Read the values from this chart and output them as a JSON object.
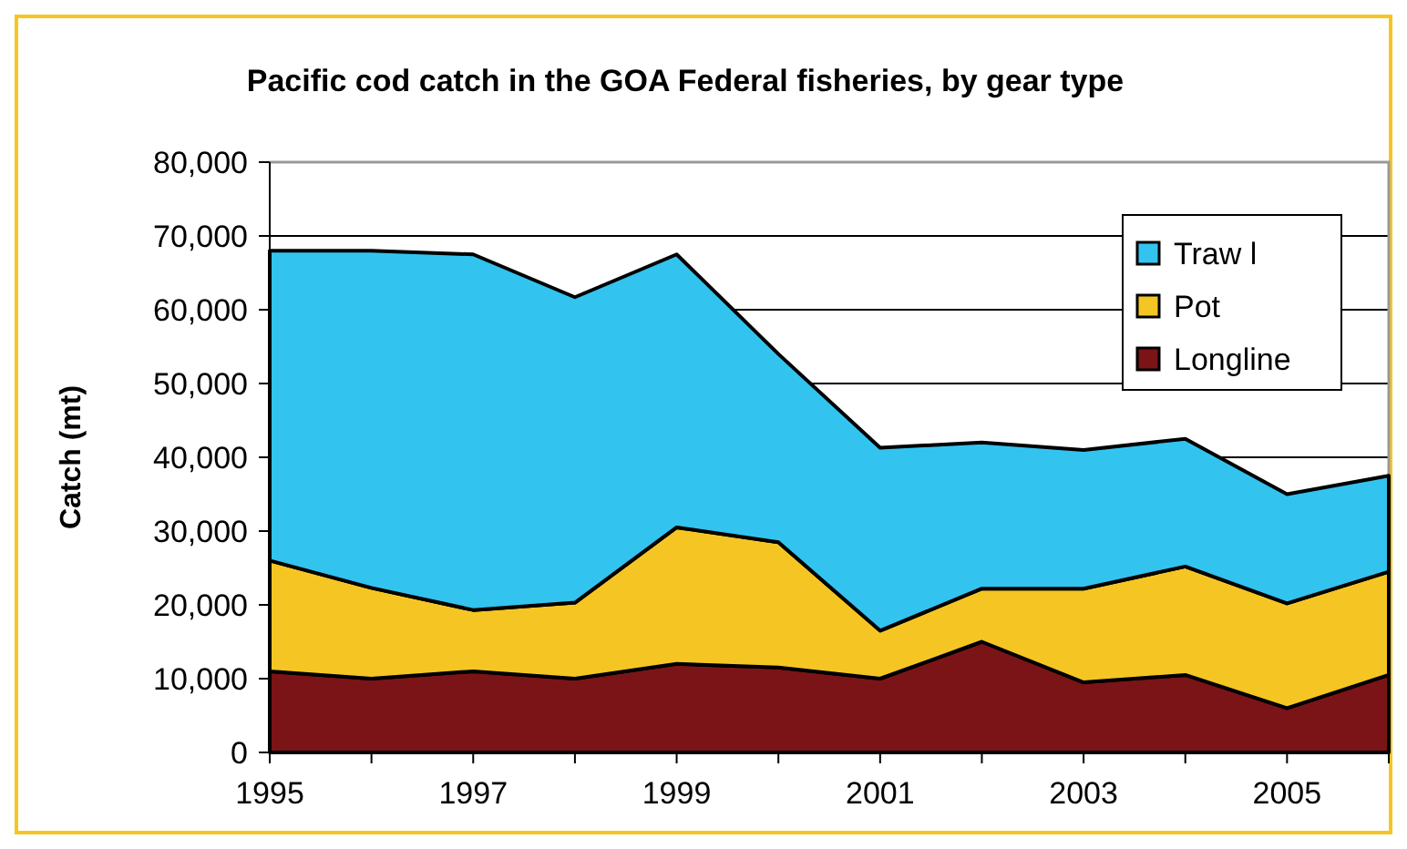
{
  "chart_data": {
    "type": "area",
    "title": "Pacific cod catch in the GOA Federal fisheries, by gear type",
    "ylabel": "Catch (mt)",
    "stacked": true,
    "x": [
      1995,
      1996,
      1997,
      1998,
      1999,
      2000,
      2001,
      2002,
      2003,
      2004,
      2005,
      2006
    ],
    "series": [
      {
        "name": "Longline",
        "color": "#7b1416",
        "values": [
          11000,
          10000,
          11000,
          10000,
          12000,
          11500,
          10000,
          15000,
          9500,
          10500,
          6000,
          10500
        ]
      },
      {
        "name": "Pot",
        "color": "#f5c623",
        "values": [
          15000,
          12300,
          8300,
          10300,
          18500,
          17000,
          6500,
          7200,
          12700,
          14700,
          14200,
          14000
        ]
      },
      {
        "name": "Traw l",
        "color": "#33c3ef",
        "values": [
          42000,
          45700,
          48200,
          41400,
          37000,
          25500,
          24800,
          19800,
          18800,
          17300,
          14800,
          13000
        ]
      }
    ],
    "xlim": [
      1995,
      2006
    ],
    "xticks": [
      1995,
      {
        "value": 1996,
        "label": null
      },
      1997,
      {
        "value": 1998,
        "label": null
      },
      1999,
      {
        "value": 2000,
        "label": null
      },
      2001,
      {
        "value": 2002,
        "label": null
      },
      2003,
      {
        "value": 2004,
        "label": null
      },
      2005,
      {
        "value": 2006,
        "label": null
      }
    ],
    "ylim": [
      0,
      80000
    ],
    "yticks": [
      {
        "value": 0,
        "label": "0"
      },
      {
        "value": 10000,
        "label": "10,000"
      },
      {
        "value": 20000,
        "label": "20,000"
      },
      {
        "value": 30000,
        "label": "30,000"
      },
      {
        "value": 40000,
        "label": "40,000"
      },
      {
        "value": 50000,
        "label": "50,000"
      },
      {
        "value": 60000,
        "label": "60,000"
      },
      {
        "value": 70000,
        "label": "70,000"
      },
      {
        "value": 80000,
        "label": "80,000"
      }
    ],
    "grid": "y",
    "legend": "top right"
  }
}
